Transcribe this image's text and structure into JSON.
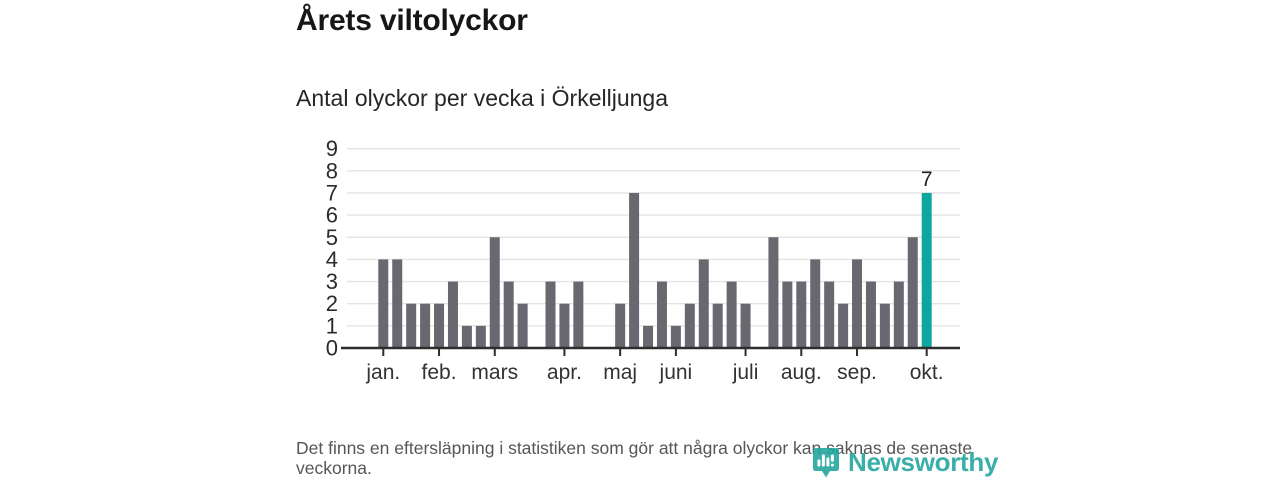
{
  "chart_data": {
    "type": "bar",
    "title": "Årets viltolyckor",
    "subtitle": "Antal olyckor per vecka i Örkelljunga",
    "x_unit": "vecka",
    "ylim": [
      0,
      9
    ],
    "y_ticks": [
      0,
      1,
      2,
      3,
      4,
      5,
      6,
      7,
      8,
      9
    ],
    "grid": true,
    "values": [
      4,
      4,
      2,
      2,
      2,
      3,
      1,
      1,
      5,
      3,
      2,
      0,
      3,
      2,
      3,
      0,
      0,
      2,
      7,
      1,
      3,
      1,
      2,
      4,
      2,
      3,
      2,
      0,
      5,
      3,
      3,
      4,
      3,
      2,
      4,
      3,
      2,
      3,
      5,
      7
    ],
    "month_ticks": [
      {
        "label": "jan.",
        "index": 0
      },
      {
        "label": "feb.",
        "index": 4
      },
      {
        "label": "mars",
        "index": 8
      },
      {
        "label": "apr.",
        "index": 13
      },
      {
        "label": "maj",
        "index": 17
      },
      {
        "label": "juni",
        "index": 21
      },
      {
        "label": "juli",
        "index": 26
      },
      {
        "label": "aug.",
        "index": 30
      },
      {
        "label": "sep.",
        "index": 34
      },
      {
        "label": "okt.",
        "index": 39
      }
    ],
    "highlight_index": 39,
    "highlight_label": "7",
    "colors": {
      "bar": "#696870",
      "highlight": "#0ca79e",
      "grid": "#e4e4e4",
      "axis": "#2d2d2d",
      "tick_text": "#333333",
      "value_label": "#222222"
    }
  },
  "footer": {
    "disclaimer": "Det finns en eftersläpning i statistiken som gör att några olyckor kan saknas de senaste veckorna."
  },
  "logo": {
    "name": "Newsworthy",
    "color": "#1fa59e"
  }
}
